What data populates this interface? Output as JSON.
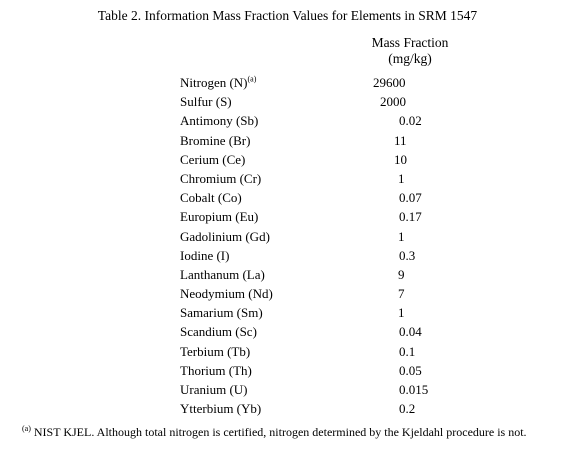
{
  "table": {
    "title": "Table 2.  Information Mass Fraction Values for Elements in SRM 1547",
    "column_header_line1": "Mass Fraction",
    "column_header_line2": "(mg/kg)",
    "rows": [
      {
        "element": "Nitrogen (N)",
        "note": "(a)",
        "value": "29600"
      },
      {
        "element": "Sulfur (S)",
        "value": "2000"
      },
      {
        "element": "Antimony (Sb)",
        "value": "0.02"
      },
      {
        "element": "Bromine (Br)",
        "value": "11"
      },
      {
        "element": "Cerium (Ce)",
        "value": "10"
      },
      {
        "element": "Chromium (Cr)",
        "value": "1"
      },
      {
        "element": "Cobalt (Co)",
        "value": "0.07"
      },
      {
        "element": "Europium (Eu)",
        "value": "0.17"
      },
      {
        "element": "Gadolinium (Gd)",
        "value": "1"
      },
      {
        "element": "Iodine (I)",
        "value": "0.3"
      },
      {
        "element": "Lanthanum (La)",
        "value": "9"
      },
      {
        "element": "Neodymium (Nd)",
        "value": "7"
      },
      {
        "element": "Samarium (Sm)",
        "value": "1"
      },
      {
        "element": "Scandium (Sc)",
        "value": "0.04"
      },
      {
        "element": "Terbium (Tb)",
        "value": "0.1"
      },
      {
        "element": "Thorium (Th)",
        "value": "0.05"
      },
      {
        "element": "Uranium (U)",
        "value": "0.015"
      },
      {
        "element": "Ytterbium (Yb)",
        "value": "0.2"
      }
    ]
  },
  "footnote": {
    "marker": "(a)",
    "text": " NIST KJEL.  Although total nitrogen is certified, nitrogen determined by the Kjeldahl procedure is not."
  }
}
